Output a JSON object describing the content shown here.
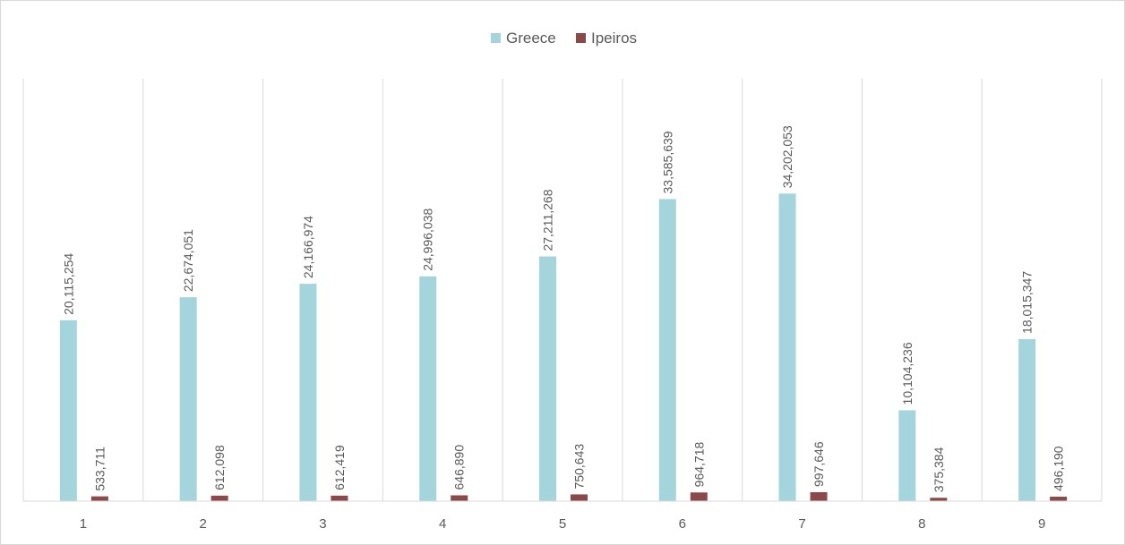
{
  "chart_data": {
    "type": "bar",
    "title": "",
    "xlabel": "",
    "ylabel": "",
    "categories": [
      "1",
      "2",
      "3",
      "4",
      "5",
      "6",
      "7",
      "8",
      "9"
    ],
    "series": [
      {
        "name": "Greece",
        "color": "#a5d5dc",
        "values": [
          20115254,
          22674051,
          24166974,
          24996038,
          27211268,
          33585639,
          34202053,
          10104236,
          18015347
        ],
        "labels": [
          "20,115,254",
          "22,674,051",
          "24,166,974",
          "24,996,038",
          "27,211,268",
          "33,585,639",
          "34,202,053",
          "10,104,236",
          "18,015,347"
        ]
      },
      {
        "name": "Ipeiros",
        "color": "#8b4a4a",
        "values": [
          533711,
          612098,
          612419,
          646890,
          750643,
          964718,
          997646,
          375384,
          496190
        ],
        "labels": [
          "533,711",
          "612,098",
          "612,419",
          "646,890",
          "750,643",
          "964,718",
          "997,646",
          "375,384",
          "496,190"
        ]
      }
    ],
    "ylim": [
      0,
      40000000
    ],
    "legend_position": "top-center",
    "grid": "vertical category separators",
    "axis_visible": false
  }
}
